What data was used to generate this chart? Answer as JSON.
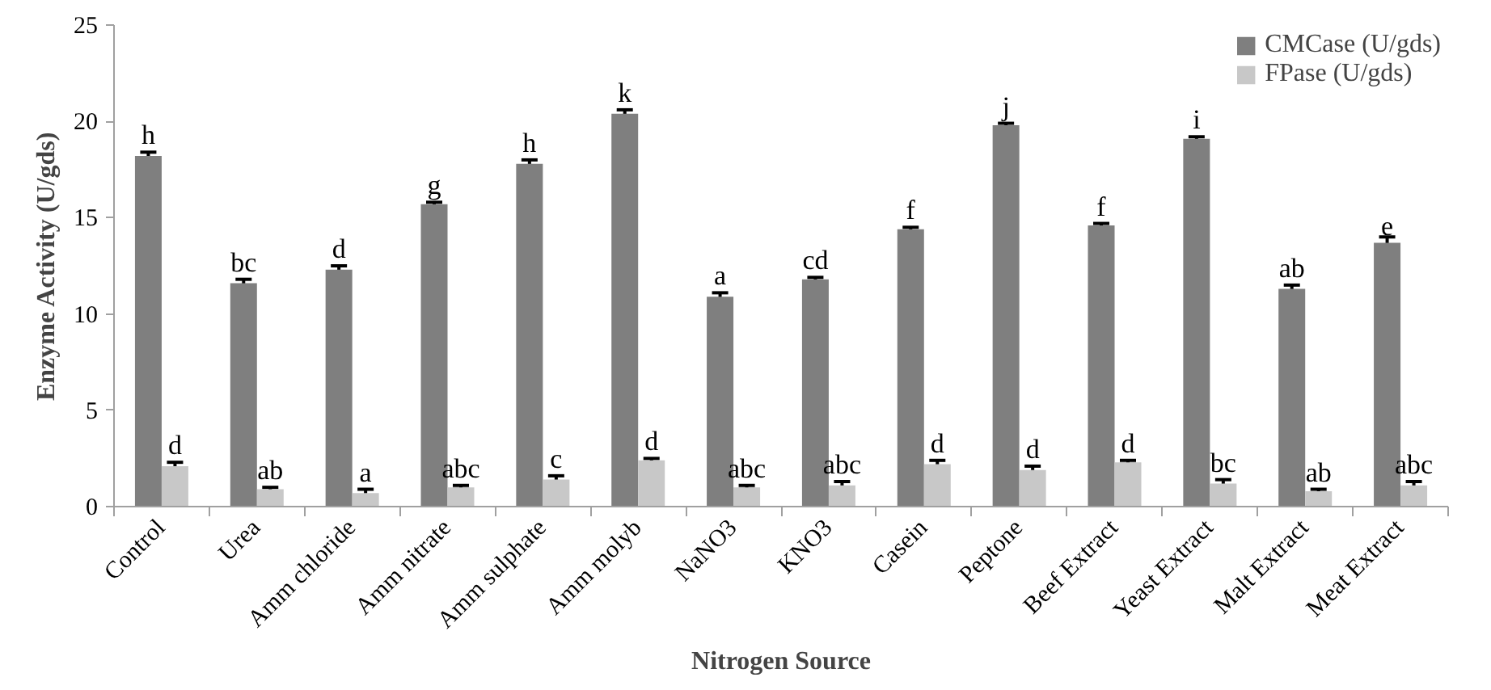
{
  "chart_data": {
    "type": "bar",
    "xlabel": "Nitrogen Source",
    "ylabel": "Enzyme Activity (U/gds)",
    "categories": [
      "Control",
      "Urea",
      "Amm chloride",
      "Amm nitrate",
      "Amm sulphate",
      "Amm molyb",
      "NaNO3",
      "KNO3",
      "Casein",
      "Peptone",
      "Beef Extract",
      "Yeast Extract",
      "Malt Extract",
      "Meat Extract"
    ],
    "series": [
      {
        "name": "CMCase (U/gds)",
        "color": "#7f7f7f",
        "values": [
          18.2,
          11.6,
          12.3,
          15.7,
          17.8,
          20.4,
          10.9,
          11.8,
          14.4,
          19.8,
          14.6,
          19.1,
          11.3,
          13.7
        ],
        "errors": [
          0.2,
          0.2,
          0.2,
          0.1,
          0.2,
          0.2,
          0.2,
          0.1,
          0.1,
          0.1,
          0.1,
          0.1,
          0.2,
          0.3
        ],
        "value_labels": [
          "h",
          "bc",
          "d",
          "g",
          "h",
          "k",
          "a",
          "cd",
          "f",
          "j",
          "f",
          "i",
          "ab",
          "e"
        ]
      },
      {
        "name": "FPase (U/gds)",
        "color": "#c8c8c8",
        "values": [
          2.1,
          0.9,
          0.7,
          1.0,
          1.4,
          2.4,
          1.0,
          1.1,
          2.2,
          1.9,
          2.3,
          1.2,
          0.8,
          1.1
        ],
        "errors": [
          0.2,
          0.1,
          0.2,
          0.1,
          0.2,
          0.1,
          0.1,
          0.2,
          0.2,
          0.2,
          0.1,
          0.2,
          0.1,
          0.2
        ],
        "value_labels": [
          "d",
          "ab",
          "a",
          "abc",
          "c",
          "d",
          "abc",
          "abc",
          "d",
          "d",
          "d",
          "bc",
          "ab",
          "abc"
        ]
      }
    ],
    "ylim": [
      0,
      25
    ],
    "yticks": [
      0,
      5,
      10,
      15,
      20,
      25
    ],
    "grid": false,
    "legend": "top right"
  }
}
